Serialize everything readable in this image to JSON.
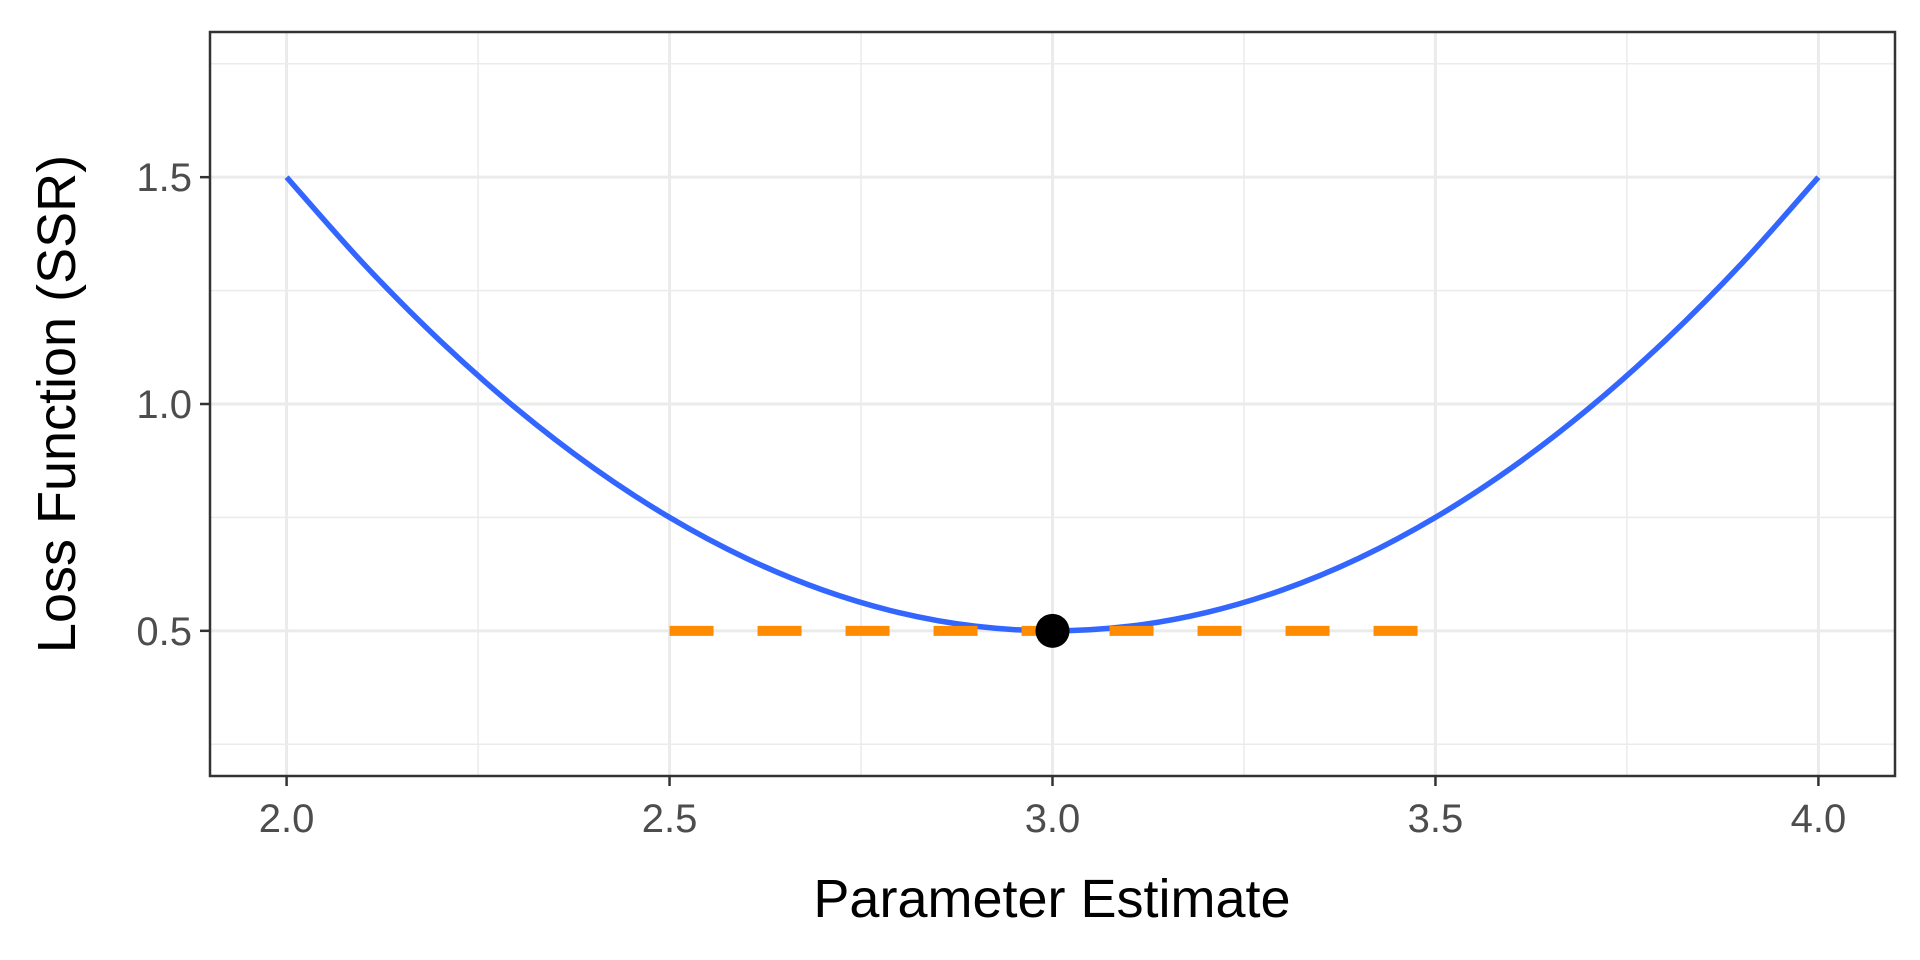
{
  "chart_data": {
    "type": "line",
    "title": "",
    "xlabel": "Parameter Estimate",
    "ylabel": "Loss Function (SSR)",
    "xlim": [
      1.9,
      4.1
    ],
    "ylim": [
      0.18,
      1.82
    ],
    "x_ticks": [
      "2.0",
      "2.5",
      "3.0",
      "3.5",
      "4.0"
    ],
    "y_ticks": [
      "0.5",
      "1.0",
      "1.5"
    ],
    "x_tick_values": [
      2.0,
      2.5,
      3.0,
      3.5,
      4.0
    ],
    "y_tick_values": [
      0.5,
      1.0,
      1.5
    ],
    "x_minor": [
      2.25,
      2.75,
      3.25,
      3.75
    ],
    "y_minor": [
      0.25,
      0.75,
      1.25,
      1.75
    ],
    "grid": true,
    "series": [
      {
        "kind": "curve",
        "color": "#3366ff",
        "x": [
          2.0,
          2.1,
          2.2,
          2.3,
          2.4,
          2.5,
          2.6,
          2.7,
          2.8,
          2.9,
          3.0,
          3.1,
          3.2,
          3.3,
          3.4,
          3.5,
          3.6,
          3.7,
          3.8,
          3.9,
          4.0
        ],
        "y": [
          1.5,
          1.31,
          1.14,
          0.99,
          0.86,
          0.75,
          0.66,
          0.59,
          0.54,
          0.51,
          0.5,
          0.51,
          0.54,
          0.59,
          0.66,
          0.75,
          0.86,
          0.99,
          1.14,
          1.31,
          1.5
        ]
      },
      {
        "kind": "dashed-line",
        "color": "#ff8c00",
        "x": [
          2.5,
          3.5
        ],
        "y": [
          0.5,
          0.5
        ]
      }
    ],
    "point": {
      "x": 3.0,
      "y": 0.5,
      "color": "#000000"
    }
  }
}
